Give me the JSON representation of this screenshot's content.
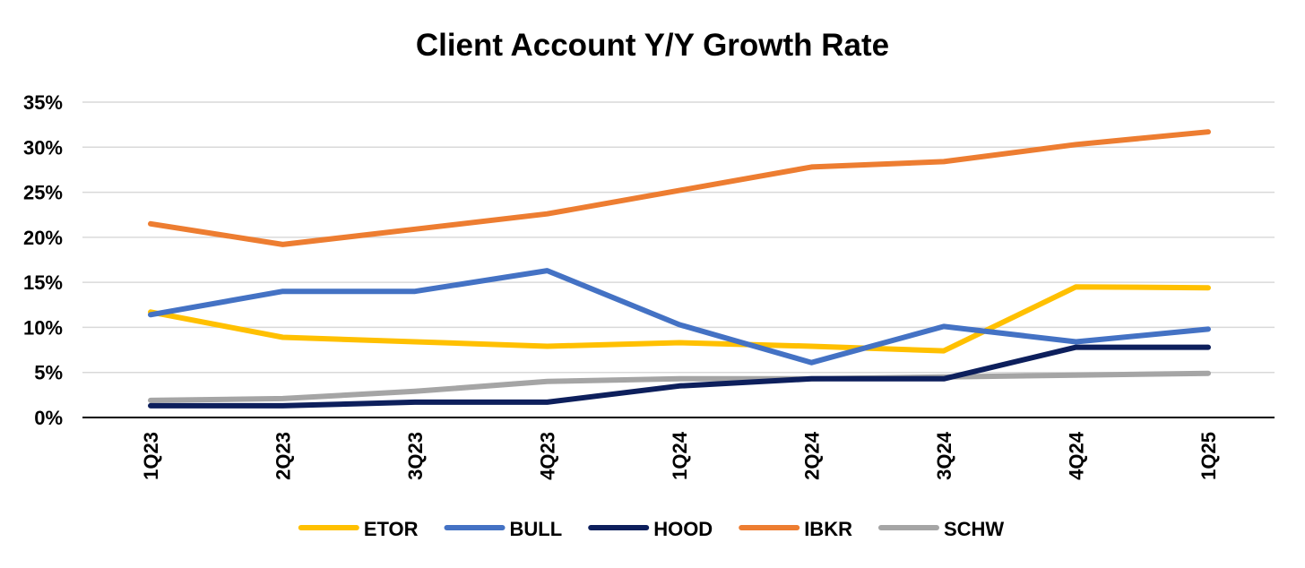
{
  "chart_data": {
    "type": "line",
    "title": "Client Account Y/Y Growth Rate",
    "xlabel": "",
    "ylabel": "",
    "categories": [
      "1Q23",
      "2Q23",
      "3Q23",
      "4Q23",
      "1Q24",
      "2Q24",
      "3Q24",
      "4Q24",
      "1Q25"
    ],
    "ylim": [
      0,
      35
    ],
    "y_ticks": [
      0,
      5,
      10,
      15,
      20,
      25,
      30,
      35
    ],
    "y_tick_labels": [
      "0%",
      "5%",
      "10%",
      "15%",
      "20%",
      "25%",
      "30%",
      "35%"
    ],
    "grid": true,
    "legend_position": "bottom",
    "series": [
      {
        "name": "ETOR",
        "color": "#FFC000",
        "values": [
          11.7,
          8.9,
          8.4,
          7.9,
          8.3,
          7.9,
          7.4,
          14.5,
          14.4
        ]
      },
      {
        "name": "BULL",
        "color": "#4472C4",
        "values": [
          11.4,
          14.0,
          14.0,
          16.3,
          10.3,
          6.1,
          10.1,
          8.4,
          9.8
        ]
      },
      {
        "name": "HOOD",
        "color": "#0D1F5C",
        "values": [
          1.3,
          1.3,
          1.7,
          1.7,
          3.5,
          4.3,
          4.3,
          7.8,
          7.8
        ]
      },
      {
        "name": "IBKR",
        "color": "#ED7D31",
        "values": [
          21.5,
          19.2,
          20.9,
          22.6,
          25.2,
          27.8,
          28.4,
          30.3,
          31.7
        ]
      },
      {
        "name": "SCHW",
        "color": "#A5A5A5",
        "values": [
          1.9,
          2.1,
          2.9,
          4.0,
          4.3,
          4.3,
          4.5,
          4.7,
          4.9
        ]
      }
    ]
  }
}
